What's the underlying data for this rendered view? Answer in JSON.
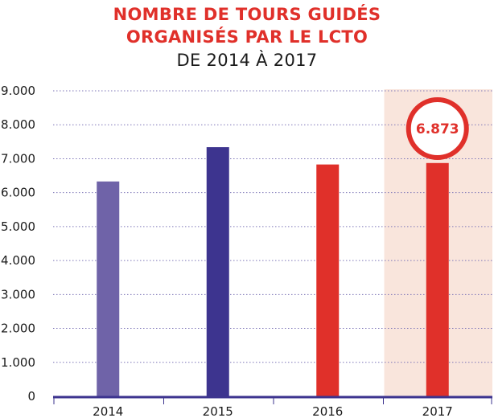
{
  "title": {
    "line1": "NOMBRE DE TOURS GUIDÉS",
    "line2": "ORGANISÉS PAR LE LCTO",
    "line3": "DE 2014 À 2017"
  },
  "colors": {
    "title_accent": "#e0302a",
    "bar_2014": "#6f63a8",
    "bar_2015": "#3d348f",
    "bar_2016": "#e0302a",
    "bar_2017": "#e0302a",
    "axis": "#3d348f",
    "grid": "#7f77b8",
    "highlight_band": "#f9e5dc"
  },
  "chart_data": {
    "type": "bar",
    "title": "NOMBRE DE TOURS GUIDÉS ORGANISÉS PAR LE LCTO",
    "subtitle": "DE 2014 À 2017",
    "categories": [
      "2014",
      "2015",
      "2016",
      "2017"
    ],
    "values": [
      6330,
      7340,
      6830,
      6873
    ],
    "ylim": [
      0,
      9000
    ],
    "yticks": [
      0,
      1000,
      2000,
      3000,
      4000,
      5000,
      6000,
      7000,
      8000,
      9000
    ],
    "ytick_labels": [
      "0",
      "1.000",
      "2.000",
      "3.000",
      "4.000",
      "5.000",
      "6.000",
      "7.000",
      "8.000",
      "9.000"
    ],
    "highlight_category": "2017",
    "annotation": "6.873",
    "grid": true,
    "xlabel": "",
    "ylabel": ""
  }
}
